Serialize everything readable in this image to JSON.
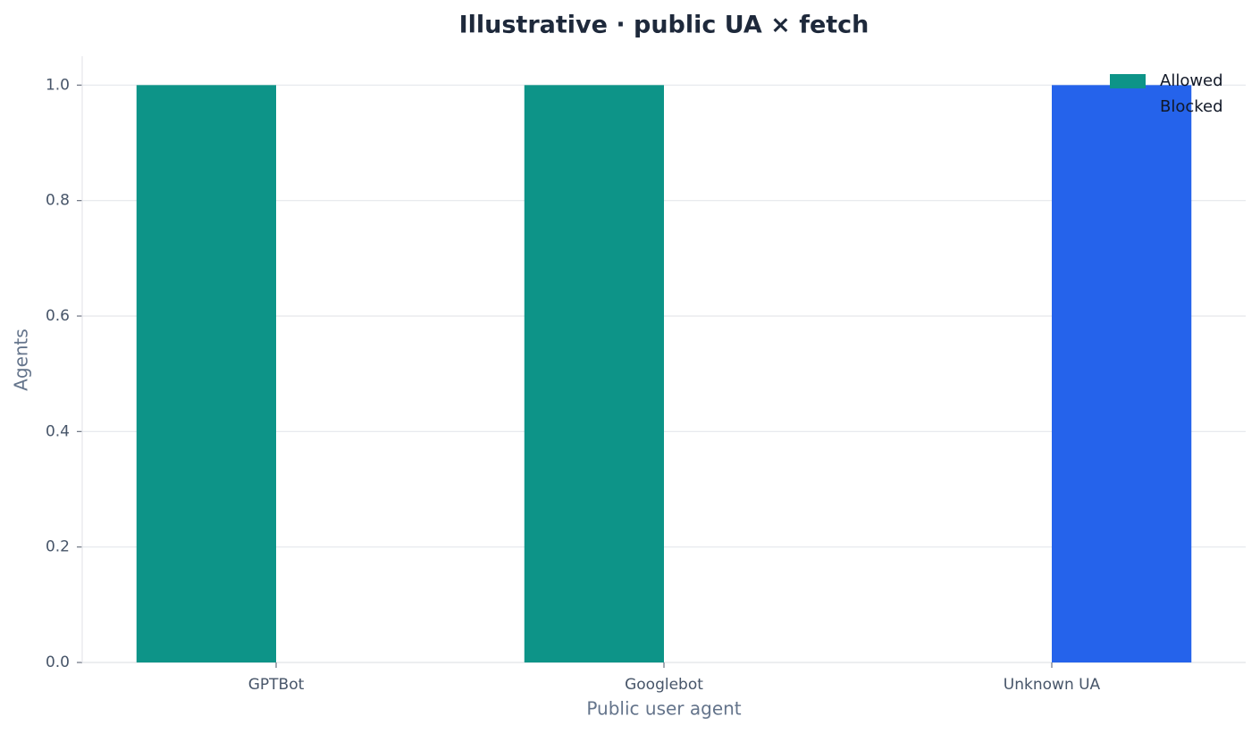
{
  "chart_data": {
    "type": "bar",
    "title": "Illustrative · public UA × fetch",
    "x_label": "Public user agent",
    "y_label": "Agents",
    "categories": [
      "GPTBot",
      "Googlebot",
      "Unknown UA"
    ],
    "series": [
      {
        "name": "Allowed",
        "color": "#0d9488",
        "values": [
          1,
          1,
          0
        ]
      },
      {
        "name": "Blocked",
        "color": "#2563eb",
        "values": [
          0,
          0,
          1
        ]
      }
    ],
    "ylim": [
      0,
      1.05
    ],
    "yticks": [
      {
        "value": 0,
        "label": "0.0"
      },
      0.2,
      0.4,
      0.6,
      0.8,
      {
        "value": 1,
        "label": "1.0"
      }
    ],
    "grid": true,
    "legend": "upper right"
  }
}
